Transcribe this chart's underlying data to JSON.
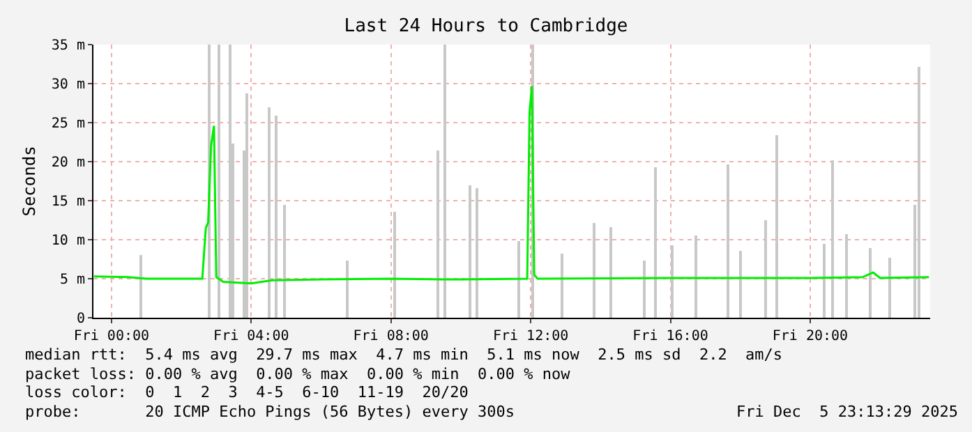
{
  "chart_data": {
    "type": "line",
    "title": "Last 24 Hours to Cambridge",
    "ylabel": "Seconds",
    "xlim": [
      "2025-12-04T23:29",
      "2025-12-05T23:26"
    ],
    "xticks": [
      {
        "value": "2025-12-05T00:00",
        "label": "Fri 00:00"
      },
      {
        "value": "2025-12-05T04:00",
        "label": "Fri 04:00"
      },
      {
        "value": "2025-12-05T08:00",
        "label": "Fri 08:00"
      },
      {
        "value": "2025-12-05T12:00",
        "label": "Fri 12:00"
      },
      {
        "value": "2025-12-05T16:00",
        "label": "Fri 16:00"
      },
      {
        "value": "2025-12-05T20:00",
        "label": "Fri 20:00"
      }
    ],
    "ylim": [
      0,
      35
    ],
    "yticks": [
      0,
      {
        "value": 5,
        "label": "5 m"
      },
      {
        "value": 10,
        "label": "10 m"
      },
      {
        "value": 15,
        "label": "15 m"
      },
      {
        "value": 20,
        "label": "20 m"
      },
      {
        "value": 25,
        "label": "25 m"
      },
      {
        "value": 30,
        "label": "30 m"
      },
      {
        "value": 35,
        "label": "35 m"
      }
    ],
    "grid": true,
    "series": [
      {
        "type": "bar",
        "color": "#c8c8c8",
        "x": [
          "2025-12-05T00:52",
          "2025-12-05T02:48",
          "2025-12-05T03:04",
          "2025-12-05T03:24",
          "2025-12-05T03:28",
          "2025-12-05T03:48",
          "2025-12-05T03:54",
          "2025-12-05T04:32",
          "2025-12-05T04:44",
          "2025-12-05T04:58",
          "2025-12-05T06:46",
          "2025-12-05T08:07",
          "2025-12-05T09:20",
          "2025-12-05T09:32",
          "2025-12-05T10:16",
          "2025-12-05T10:28",
          "2025-12-05T11:41",
          "2025-12-05T12:04",
          "2025-12-05T12:54",
          "2025-12-05T13:50",
          "2025-12-05T14:18",
          "2025-12-05T15:16",
          "2025-12-05T15:34",
          "2025-12-05T16:04",
          "2025-12-05T16:44",
          "2025-12-05T17:40",
          "2025-12-05T18:00",
          "2025-12-05T18:44",
          "2025-12-05T19:04",
          "2025-12-05T20:24",
          "2025-12-05T20:40",
          "2025-12-05T21:04",
          "2025-12-05T21:44",
          "2025-12-05T22:16",
          "2025-12-05T23:00",
          "2025-12-05T23:08"
        ],
        "values": [
          8.0,
          35,
          35,
          35,
          22.3,
          21.4,
          28.8,
          27,
          25.9,
          14.5,
          7.3,
          13.6,
          21.4,
          35,
          17,
          16.6,
          9.8,
          35,
          8.3,
          12.1,
          11.6,
          7.4,
          19.3,
          9.2,
          10.5,
          19.6,
          8.6,
          12.5,
          23.4,
          9.5,
          20.2,
          10.7,
          8.9,
          7.7,
          14.5,
          32.1
        ]
      },
      {
        "color": "#00ee00",
        "x": [
          "2025-12-04T23:30",
          "2025-12-05T00:30",
          "2025-12-05T01:00",
          "2025-12-05T02:36",
          "2025-12-05T02:42",
          "2025-12-05T02:46",
          "2025-12-05T02:51",
          "2025-12-05T02:56",
          "2025-12-05T03:00",
          "2025-12-05T03:12",
          "2025-12-05T04:00",
          "2025-12-05T04:36",
          "2025-12-05T06:00",
          "2025-12-05T08:00",
          "2025-12-05T09:30",
          "2025-12-05T10:00",
          "2025-12-05T11:54",
          "2025-12-05T11:58",
          "2025-12-05T12:02",
          "2025-12-05T12:06",
          "2025-12-05T12:12",
          "2025-12-05T16:00",
          "2025-12-05T20:00",
          "2025-12-05T21:30",
          "2025-12-05T21:48",
          "2025-12-05T22:00",
          "2025-12-05T23:24"
        ],
        "values": [
          5.3,
          5.2,
          5.0,
          5.0,
          11.5,
          12.2,
          22,
          24.6,
          5.2,
          4.6,
          4.4,
          4.8,
          4.9,
          5.0,
          4.9,
          4.9,
          5.0,
          26.3,
          29.7,
          5.5,
          5.0,
          5.1,
          5.1,
          5.2,
          5.8,
          5.1,
          5.2
        ]
      }
    ],
    "annotations": [
      "median rtt:  5.4 ms avg  29.7 ms max  4.7 ms min  5.1 ms now  2.5 ms sd  2.2  am/s",
      "packet loss: 0.00 % avg  0.00 % max  0.00 % min  0.00 % now",
      "loss color:  0  1  2  3  4-5  6-10  11-19  20/20",
      "probe:       20 ICMP Echo Pings (56 Bytes) every 300s",
      "Fri Dec  5 23:13:29 2025"
    ]
  }
}
